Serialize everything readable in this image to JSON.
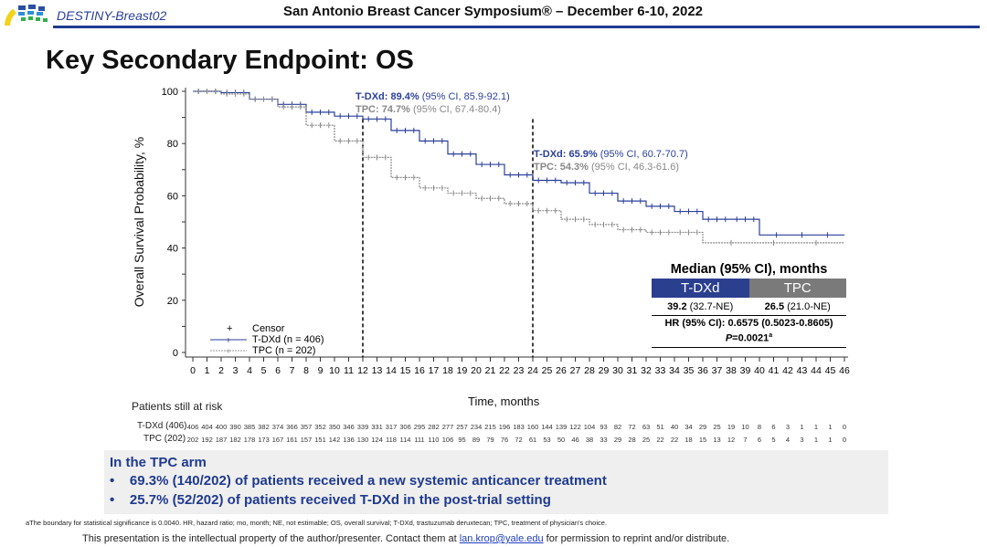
{
  "header": {
    "brand": "DESTINY-Breast02",
    "conference": "San Antonio Breast Cancer Symposium® – December 6-10, 2022"
  },
  "slide_title": "Key Secondary Endpoint: OS",
  "colors": {
    "tdxd": "#2b3f9a",
    "tpc": "#8a8a8a",
    "accent": "#1f3a8f",
    "tpc_header": "#7a7a7a"
  },
  "chart_data": {
    "type": "line",
    "title": "Key Secondary Endpoint: OS",
    "xlabel": "Time, months",
    "ylabel": "Overall Survival Probability, %",
    "xlim": [
      0,
      46
    ],
    "ylim": [
      0,
      100
    ],
    "xticks": [
      0,
      1,
      2,
      3,
      4,
      5,
      6,
      7,
      8,
      9,
      10,
      11,
      12,
      13,
      14,
      15,
      16,
      17,
      18,
      19,
      20,
      21,
      22,
      23,
      24,
      25,
      26,
      27,
      28,
      29,
      30,
      31,
      32,
      33,
      34,
      35,
      36,
      37,
      38,
      39,
      40,
      41,
      42,
      43,
      44,
      45,
      46
    ],
    "yticks": [
      0,
      20,
      40,
      60,
      80,
      100
    ],
    "grid": false,
    "legend": {
      "position": "bottom-left",
      "entries": [
        "Censor",
        "T-DXd (n = 406)",
        "TPC (n = 202)"
      ]
    },
    "reference_lines": [
      12,
      24
    ],
    "series": [
      {
        "name": "T-DXd (n = 406)",
        "style": "solid",
        "x": [
          0,
          2,
          4,
          6,
          8,
          10,
          12,
          14,
          16,
          18,
          20,
          22,
          24,
          26,
          28,
          30,
          32,
          34,
          36,
          38,
          40,
          46
        ],
        "y": [
          100,
          99.5,
          97,
          95,
          92,
          90.5,
          89.4,
          85,
          81,
          76,
          72,
          68,
          65.9,
          65,
          61,
          58,
          56,
          54,
          51,
          51,
          45,
          45
        ]
      },
      {
        "name": "TPC (n = 202)",
        "style": "dashed",
        "x": [
          0,
          2,
          4,
          6,
          8,
          10,
          12,
          14,
          16,
          18,
          20,
          22,
          24,
          26,
          28,
          30,
          32,
          34,
          36,
          46
        ],
        "y": [
          100,
          99,
          97,
          94,
          87,
          81,
          74.7,
          67,
          63,
          61,
          59,
          57,
          54.3,
          51,
          49,
          47,
          46,
          46,
          42,
          42
        ]
      }
    ],
    "annotations": [
      {
        "month": 12,
        "tdxd_label": "T-DXd: 89.4%",
        "tdxd_ci": "(95% CI, 85.9-92.1)",
        "tpc_label": "TPC: 74.7%",
        "tpc_ci": "(95% CI, 67.4-80.4)"
      },
      {
        "month": 24,
        "tdxd_label": "T-DXd: 65.9%",
        "tdxd_ci": "(95% CI, 60.7-70.7)",
        "tpc_label": "TPC: 54.3%",
        "tpc_ci": "(95% CI, 46.3-61.6)"
      }
    ]
  },
  "median_table": {
    "title": "Median (95% CI), months",
    "col1": "T-DXd",
    "col2": "TPC",
    "val1_bold": "39.2",
    "val1_ci": "(32.7-NE)",
    "val2_bold": "26.5",
    "val2_ci": "(21.0-NE)",
    "hr": "HR (95% CI): 0.6575 (0.5023-0.8605)",
    "p_label": "P",
    "p_value": "=0.0021",
    "p_sup": "a"
  },
  "risk_table": {
    "label": "Patients still at risk",
    "rows": [
      {
        "label": "T-DXd (406)",
        "values": [
          406,
          404,
          400,
          390,
          385,
          382,
          374,
          366,
          357,
          352,
          350,
          346,
          339,
          331,
          317,
          306,
          295,
          282,
          277,
          257,
          234,
          215,
          196,
          183,
          160,
          144,
          139,
          122,
          104,
          93,
          82,
          72,
          63,
          51,
          40,
          34,
          29,
          25,
          19,
          10,
          8,
          6,
          3,
          1,
          1,
          1,
          0
        ]
      },
      {
        "label": "TPC (202)",
        "values": [
          202,
          192,
          187,
          182,
          178,
          173,
          167,
          161,
          157,
          151,
          142,
          136,
          130,
          124,
          118,
          114,
          111,
          110,
          106,
          95,
          89,
          79,
          76,
          72,
          61,
          53,
          50,
          46,
          38,
          33,
          29,
          28,
          25,
          22,
          22,
          18,
          15,
          13,
          12,
          7,
          6,
          5,
          4,
          3,
          1,
          1,
          0
        ]
      }
    ]
  },
  "notes": {
    "title": "In the TPC arm",
    "bullets": [
      "69.3% (140/202) of patients received a new systemic anticancer treatment",
      "25.7% (52/202) of patients received T-DXd in the post-trial setting"
    ]
  },
  "footnote": "aThe boundary for statistical significance is 0.0040. HR, hazard ratio; mo, month; NE, not estimable; OS, overall survival; T-DXd, trastuzumab deruxtecan; TPC, treatment of physician's choice.",
  "ip_notice": {
    "before": "This presentation is the intellectual property of the author/presenter. Contact them at ",
    "email": "lan.krop@yale.edu",
    "after": " for permission to reprint and/or distribute."
  }
}
